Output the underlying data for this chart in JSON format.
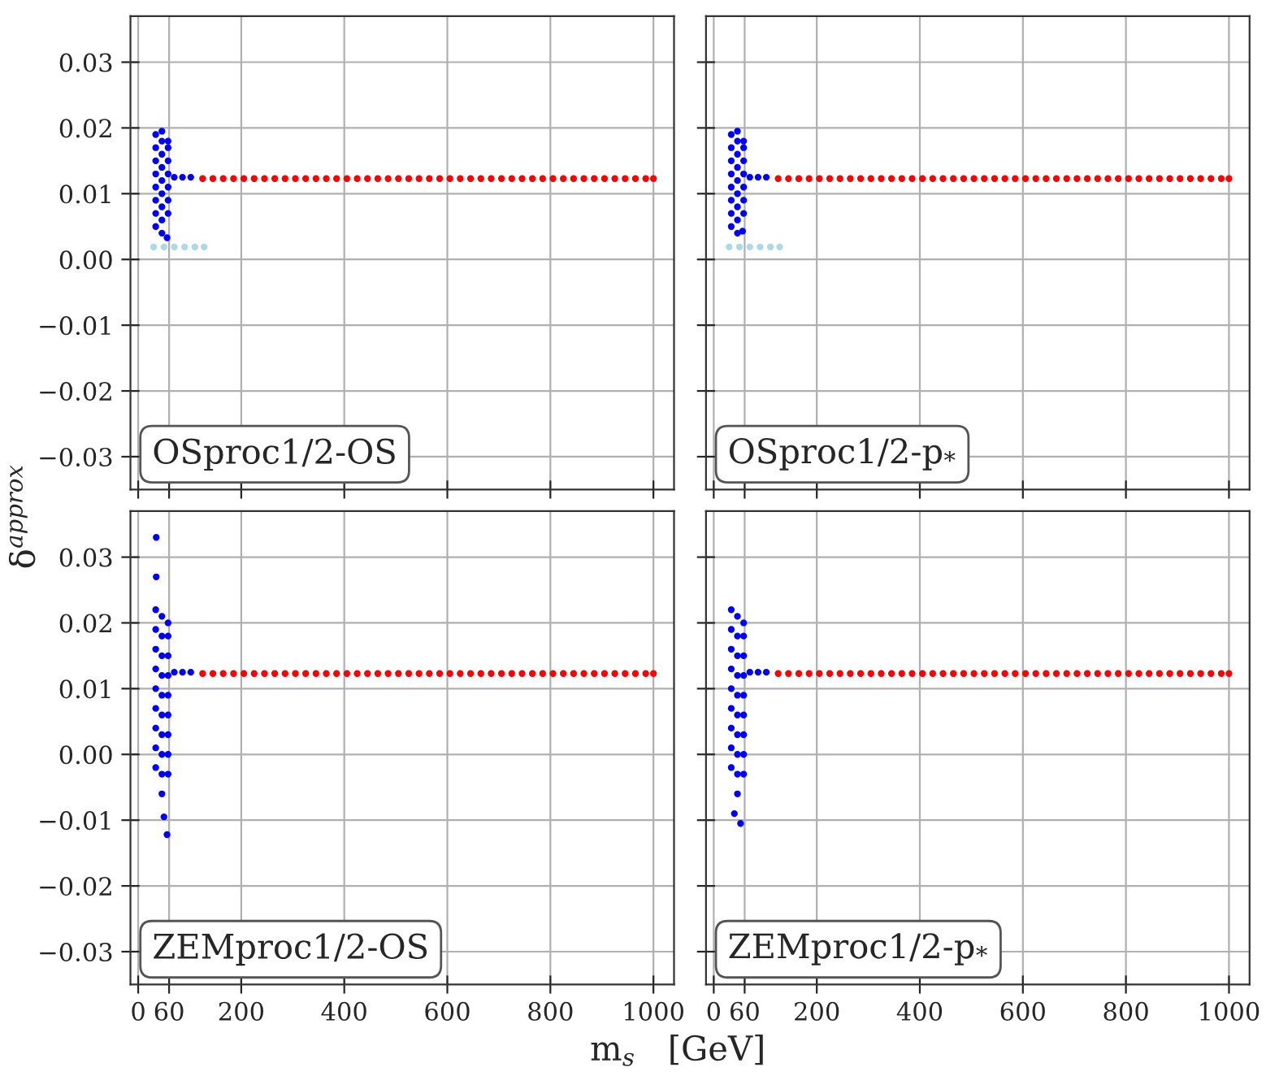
{
  "chart_data": [
    {
      "type": "scatter",
      "ylabel": "δ$^{approx}$",
      "annotations": [
        "OSproc1/2-OS"
      ],
      "xlim": [
        -15,
        1040
      ],
      "ylim": [
        -0.035,
        0.037
      ],
      "xticks": [
        0,
        60,
        200,
        400,
        600,
        800,
        1000
      ],
      "yticks": [
        {
          "value": -0.03,
          "label": "−0.03"
        },
        {
          "value": -0.02,
          "label": "−0.02"
        },
        {
          "value": -0.01,
          "label": "−0.01"
        },
        {
          "value": 0.0,
          "label": "0.00"
        },
        {
          "value": 0.01,
          "label": "0.01"
        },
        {
          "value": 0.02,
          "label": "0.02"
        },
        {
          "value": 0.03,
          "label": "0.03"
        }
      ],
      "grid": true,
      "marker": "circle",
      "tick_labels": "y",
      "series": [
        {
          "color": "#add8e6",
          "x": [
            30,
            50,
            70,
            90,
            110,
            128
          ],
          "values": [
            0.0019,
            0.0019,
            0.0019,
            0.0019,
            0.0019,
            0.0019
          ]
        },
        {
          "color": "#0000ff",
          "x": [
            34,
            34,
            34,
            34,
            34,
            34,
            34,
            34,
            46,
            46,
            46,
            46,
            46,
            46,
            46,
            46,
            46,
            58,
            58,
            58,
            58,
            58,
            58,
            58,
            56
          ],
          "values": [
            0.005,
            0.007,
            0.009,
            0.011,
            0.013,
            0.015,
            0.017,
            0.019,
            0.004,
            0.006,
            0.008,
            0.01,
            0.012,
            0.014,
            0.016,
            0.018,
            0.0195,
            0.007,
            0.009,
            0.011,
            0.013,
            0.015,
            0.017,
            0.018,
            0.0033
          ]
        },
        {
          "color": "#0000ff",
          "x": [
            70,
            86,
            102
          ],
          "values": [
            0.0125,
            0.0125,
            0.0125
          ]
        },
        {
          "color": "#ff0000",
          "x": [
            125,
            145,
            165,
            185,
            205,
            225,
            245,
            265,
            285,
            305,
            325,
            345,
            365,
            385,
            405,
            425,
            445,
            465,
            485,
            505,
            525,
            545,
            565,
            585,
            605,
            625,
            645,
            665,
            685,
            705,
            725,
            745,
            765,
            785,
            805,
            825,
            845,
            865,
            885,
            905,
            925,
            945,
            965,
            985,
            1000
          ],
          "values": [
            0.0123,
            0.0123,
            0.0123,
            0.0123,
            0.0123,
            0.0123,
            0.0123,
            0.0123,
            0.0123,
            0.0123,
            0.0123,
            0.0123,
            0.0123,
            0.0123,
            0.0123,
            0.0123,
            0.0123,
            0.0123,
            0.0123,
            0.0123,
            0.0123,
            0.0123,
            0.0123,
            0.0123,
            0.0123,
            0.0123,
            0.0123,
            0.0123,
            0.0123,
            0.0123,
            0.0123,
            0.0123,
            0.0123,
            0.0123,
            0.0123,
            0.0123,
            0.0123,
            0.0123,
            0.0123,
            0.0123,
            0.0123,
            0.0123,
            0.0123,
            0.0123,
            0.0123
          ]
        }
      ]
    },
    {
      "type": "scatter",
      "annotations": [
        "OSproc1/2-p$_{*}$"
      ],
      "xlim": [
        -15,
        1040
      ],
      "ylim": [
        -0.035,
        0.037
      ],
      "xticks": [
        0,
        60,
        200,
        400,
        600,
        800,
        1000
      ],
      "yticks": [
        -0.03,
        -0.02,
        -0.01,
        0.0,
        0.01,
        0.02,
        0.03
      ],
      "grid": true,
      "marker": "circle",
      "tick_labels": false,
      "series": [
        {
          "color": "#add8e6",
          "x": [
            30,
            50,
            70,
            90,
            110,
            128
          ],
          "values": [
            0.0019,
            0.0019,
            0.0019,
            0.0019,
            0.0019,
            0.0019
          ]
        },
        {
          "color": "#0000ff",
          "x": [
            34,
            34,
            34,
            34,
            34,
            34,
            34,
            34,
            46,
            46,
            46,
            46,
            46,
            46,
            46,
            46,
            46,
            58,
            58,
            58,
            58,
            58,
            58,
            58,
            56
          ],
          "values": [
            0.005,
            0.007,
            0.009,
            0.011,
            0.013,
            0.015,
            0.017,
            0.019,
            0.004,
            0.006,
            0.008,
            0.01,
            0.012,
            0.014,
            0.016,
            0.018,
            0.0195,
            0.007,
            0.009,
            0.011,
            0.013,
            0.015,
            0.017,
            0.018,
            0.0043
          ]
        },
        {
          "color": "#0000ff",
          "x": [
            70,
            86,
            102
          ],
          "values": [
            0.0125,
            0.0125,
            0.0125
          ]
        },
        {
          "color": "#ff0000",
          "x": [
            125,
            145,
            165,
            185,
            205,
            225,
            245,
            265,
            285,
            305,
            325,
            345,
            365,
            385,
            405,
            425,
            445,
            465,
            485,
            505,
            525,
            545,
            565,
            585,
            605,
            625,
            645,
            665,
            685,
            705,
            725,
            745,
            765,
            785,
            805,
            825,
            845,
            865,
            885,
            905,
            925,
            945,
            965,
            985,
            1000
          ],
          "values": [
            0.0123,
            0.0123,
            0.0123,
            0.0123,
            0.0123,
            0.0123,
            0.0123,
            0.0123,
            0.0123,
            0.0123,
            0.0123,
            0.0123,
            0.0123,
            0.0123,
            0.0123,
            0.0123,
            0.0123,
            0.0123,
            0.0123,
            0.0123,
            0.0123,
            0.0123,
            0.0123,
            0.0123,
            0.0123,
            0.0123,
            0.0123,
            0.0123,
            0.0123,
            0.0123,
            0.0123,
            0.0123,
            0.0123,
            0.0123,
            0.0123,
            0.0123,
            0.0123,
            0.0123,
            0.0123,
            0.0123,
            0.0123,
            0.0123,
            0.0123,
            0.0123,
            0.0123
          ]
        }
      ]
    },
    {
      "type": "scatter",
      "xlabel": "m$_{s}$   [GeV]",
      "annotations": [
        "ZEMproc1/2-OS"
      ],
      "xlim": [
        -15,
        1040
      ],
      "ylim": [
        -0.035,
        0.037
      ],
      "xticks": [
        0,
        60,
        200,
        400,
        600,
        800,
        1000
      ],
      "yticks": [
        {
          "value": -0.03,
          "label": "−0.03"
        },
        {
          "value": -0.02,
          "label": "−0.02"
        },
        {
          "value": -0.01,
          "label": "−0.01"
        },
        {
          "value": 0.0,
          "label": "0.00"
        },
        {
          "value": 0.01,
          "label": "0.01"
        },
        {
          "value": 0.02,
          "label": "0.02"
        },
        {
          "value": 0.03,
          "label": "0.03"
        }
      ],
      "grid": true,
      "marker": "circle",
      "series": [
        {
          "color": "#0000ff",
          "x": [
            34,
            34,
            34,
            34,
            34,
            34,
            34,
            34,
            34,
            46,
            46,
            46,
            46,
            46,
            46,
            46,
            46,
            46,
            46,
            58,
            58,
            58,
            58,
            58,
            58,
            58,
            58,
            58,
            35,
            35,
            50,
            56
          ],
          "values": [
            -0.002,
            0.001,
            0.004,
            0.007,
            0.01,
            0.013,
            0.016,
            0.019,
            0.022,
            -0.006,
            -0.003,
            0.0,
            0.003,
            0.006,
            0.009,
            0.012,
            0.015,
            0.018,
            0.021,
            -0.003,
            0.0,
            0.003,
            0.006,
            0.009,
            0.012,
            0.015,
            0.018,
            0.02,
            0.033,
            0.027,
            -0.0095,
            -0.0122
          ]
        },
        {
          "color": "#0000ff",
          "x": [
            70,
            86,
            102
          ],
          "values": [
            0.0125,
            0.0125,
            0.0125
          ]
        },
        {
          "color": "#ff0000",
          "x": [
            125,
            145,
            165,
            185,
            205,
            225,
            245,
            265,
            285,
            305,
            325,
            345,
            365,
            385,
            405,
            425,
            445,
            465,
            485,
            505,
            525,
            545,
            565,
            585,
            605,
            625,
            645,
            665,
            685,
            705,
            725,
            745,
            765,
            785,
            805,
            825,
            845,
            865,
            885,
            905,
            925,
            945,
            965,
            985,
            1000
          ],
          "values": [
            0.0123,
            0.0123,
            0.0123,
            0.0123,
            0.0123,
            0.0123,
            0.0123,
            0.0123,
            0.0123,
            0.0123,
            0.0123,
            0.0123,
            0.0123,
            0.0123,
            0.0123,
            0.0123,
            0.0123,
            0.0123,
            0.0123,
            0.0123,
            0.0123,
            0.0123,
            0.0123,
            0.0123,
            0.0123,
            0.0123,
            0.0123,
            0.0123,
            0.0123,
            0.0123,
            0.0123,
            0.0123,
            0.0123,
            0.0123,
            0.0123,
            0.0123,
            0.0123,
            0.0123,
            0.0123,
            0.0123,
            0.0123,
            0.0123,
            0.0123,
            0.0123,
            0.0123
          ]
        }
      ]
    },
    {
      "type": "scatter",
      "annotations": [
        "ZEMproc1/2-p$_{*}$"
      ],
      "xlim": [
        -15,
        1040
      ],
      "ylim": [
        -0.035,
        0.037
      ],
      "xticks": [
        0,
        60,
        200,
        400,
        600,
        800,
        1000
      ],
      "yticks": [
        -0.03,
        -0.02,
        -0.01,
        0.0,
        0.01,
        0.02,
        0.03
      ],
      "grid": true,
      "marker": "circle",
      "tick_labels": "x",
      "series": [
        {
          "color": "#0000ff",
          "x": [
            34,
            34,
            34,
            34,
            34,
            34,
            34,
            34,
            34,
            46,
            46,
            46,
            46,
            46,
            46,
            46,
            46,
            46,
            46,
            58,
            58,
            58,
            58,
            58,
            58,
            58,
            58,
            58,
            40,
            52
          ],
          "values": [
            -0.002,
            0.001,
            0.004,
            0.007,
            0.01,
            0.013,
            0.016,
            0.019,
            0.022,
            -0.006,
            -0.003,
            0.0,
            0.003,
            0.006,
            0.009,
            0.012,
            0.015,
            0.018,
            0.021,
            -0.003,
            0.0,
            0.003,
            0.006,
            0.009,
            0.012,
            0.015,
            0.018,
            0.02,
            -0.009,
            -0.0105
          ]
        },
        {
          "color": "#0000ff",
          "x": [
            70,
            86,
            102
          ],
          "values": [
            0.0125,
            0.0125,
            0.0125
          ]
        },
        {
          "color": "#ff0000",
          "x": [
            125,
            145,
            165,
            185,
            205,
            225,
            245,
            265,
            285,
            305,
            325,
            345,
            365,
            385,
            405,
            425,
            445,
            465,
            485,
            505,
            525,
            545,
            565,
            585,
            605,
            625,
            645,
            665,
            685,
            705,
            725,
            745,
            765,
            785,
            805,
            825,
            845,
            865,
            885,
            905,
            925,
            945,
            965,
            985,
            1000
          ],
          "values": [
            0.0123,
            0.0123,
            0.0123,
            0.0123,
            0.0123,
            0.0123,
            0.0123,
            0.0123,
            0.0123,
            0.0123,
            0.0123,
            0.0123,
            0.0123,
            0.0123,
            0.0123,
            0.0123,
            0.0123,
            0.0123,
            0.0123,
            0.0123,
            0.0123,
            0.0123,
            0.0123,
            0.0123,
            0.0123,
            0.0123,
            0.0123,
            0.0123,
            0.0123,
            0.0123,
            0.0123,
            0.0123,
            0.0123,
            0.0123,
            0.0123,
            0.0123,
            0.0123,
            0.0123,
            0.0123,
            0.0123,
            0.0123,
            0.0123,
            0.0123,
            0.0123,
            0.0123
          ]
        }
      ]
    }
  ]
}
